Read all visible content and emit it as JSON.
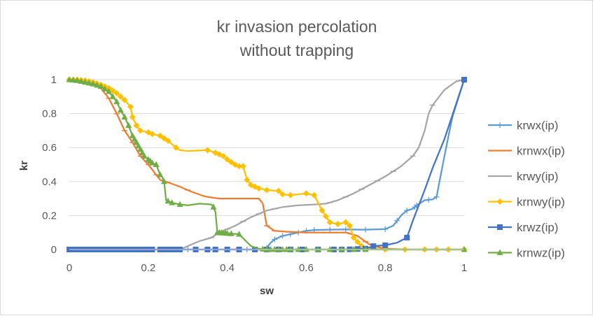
{
  "chart_data": {
    "type": "line",
    "title": [
      "kr invasion percolation",
      "without trapping"
    ],
    "xlabel": "sw",
    "ylabel": "kr",
    "xlim": [
      0,
      1
    ],
    "ylim": [
      0,
      1
    ],
    "xticks": [
      0,
      0.2,
      0.4,
      0.6,
      0.8,
      1
    ],
    "xtick_labels": [
      "0",
      "0.2",
      "0.4",
      "0.6",
      "0.8",
      "1"
    ],
    "yticks": [
      0,
      0.2,
      0.4,
      0.6,
      0.8,
      1
    ],
    "ytick_labels": [
      "0",
      "0.2",
      "0.4",
      "0.6",
      "0.8",
      "1"
    ],
    "grid": "horizontal",
    "legend_position": "right",
    "series": [
      {
        "name": "krwx(ip)",
        "color": "#5b9bd5",
        "marker": "plus",
        "points": [
          [
            0,
            0
          ],
          [
            0.1,
            0
          ],
          [
            0.2,
            0
          ],
          [
            0.3,
            0
          ],
          [
            0.4,
            0
          ],
          [
            0.45,
            0
          ],
          [
            0.48,
            0
          ],
          [
            0.5,
            0.01
          ],
          [
            0.51,
            0.04
          ],
          [
            0.52,
            0.06
          ],
          [
            0.54,
            0.08
          ],
          [
            0.56,
            0.09
          ],
          [
            0.58,
            0.1
          ],
          [
            0.6,
            0.11
          ],
          [
            0.62,
            0.115
          ],
          [
            0.66,
            0.117
          ],
          [
            0.7,
            0.118
          ],
          [
            0.75,
            0.117
          ],
          [
            0.8,
            0.12
          ],
          [
            0.82,
            0.14
          ],
          [
            0.84,
            0.2
          ],
          [
            0.855,
            0.23
          ],
          [
            0.87,
            0.24
          ],
          [
            0.88,
            0.26
          ],
          [
            0.9,
            0.29
          ],
          [
            0.92,
            0.295
          ],
          [
            0.93,
            0.31
          ],
          [
            0.95,
            0.55
          ],
          [
            0.97,
            0.78
          ],
          [
            1,
            1
          ]
        ],
        "markers_x": [
          0,
          0.05,
          0.1,
          0.15,
          0.2,
          0.25,
          0.3,
          0.4,
          0.45,
          0.5,
          0.52,
          0.54,
          0.56,
          0.58,
          0.6,
          0.62,
          0.66,
          0.7,
          0.75,
          0.8,
          0.83,
          0.855,
          0.875,
          0.88,
          0.91,
          0.93
        ]
      },
      {
        "name": "krnwx(ip)",
        "color": "#ed7d31",
        "marker": "dash",
        "points": [
          [
            0,
            1
          ],
          [
            0.02,
            0.995
          ],
          [
            0.05,
            0.98
          ],
          [
            0.08,
            0.95
          ],
          [
            0.1,
            0.89
          ],
          [
            0.12,
            0.8
          ],
          [
            0.14,
            0.7
          ],
          [
            0.16,
            0.63
          ],
          [
            0.18,
            0.55
          ],
          [
            0.2,
            0.5
          ],
          [
            0.22,
            0.44
          ],
          [
            0.23,
            0.41
          ],
          [
            0.25,
            0.395
          ],
          [
            0.28,
            0.37
          ],
          [
            0.31,
            0.34
          ],
          [
            0.34,
            0.315
          ],
          [
            0.35,
            0.31
          ],
          [
            0.38,
            0.3
          ],
          [
            0.42,
            0.3
          ],
          [
            0.48,
            0.3
          ],
          [
            0.49,
            0.27
          ],
          [
            0.5,
            0.14
          ],
          [
            0.52,
            0.11
          ],
          [
            0.55,
            0.105
          ],
          [
            0.6,
            0.1
          ],
          [
            0.65,
            0.1
          ],
          [
            0.7,
            0.1
          ],
          [
            0.73,
            0.08
          ],
          [
            0.76,
            0.03
          ],
          [
            0.78,
            0.015
          ],
          [
            0.8,
            0.005
          ],
          [
            0.85,
            0
          ],
          [
            1,
            0
          ]
        ],
        "markers_x": [
          0.02,
          0.05,
          0.08,
          0.1,
          0.12,
          0.14,
          0.16,
          0.18,
          0.2,
          0.22,
          0.25,
          0.3,
          0.35,
          0.4,
          0.45,
          0.5,
          0.52,
          0.55,
          0.6,
          0.65,
          0.7,
          0.75,
          0.78,
          0.8
        ]
      },
      {
        "name": "krwy(ip)",
        "color": "#a5a5a5",
        "marker": "dash",
        "points": [
          [
            0,
            0
          ],
          [
            0.1,
            0
          ],
          [
            0.2,
            0
          ],
          [
            0.28,
            0
          ],
          [
            0.3,
            0.02
          ],
          [
            0.33,
            0.05
          ],
          [
            0.36,
            0.07
          ],
          [
            0.38,
            0.1
          ],
          [
            0.42,
            0.14
          ],
          [
            0.46,
            0.19
          ],
          [
            0.5,
            0.23
          ],
          [
            0.54,
            0.25
          ],
          [
            0.58,
            0.26
          ],
          [
            0.62,
            0.265
          ],
          [
            0.65,
            0.27
          ],
          [
            0.68,
            0.29
          ],
          [
            0.72,
            0.33
          ],
          [
            0.76,
            0.38
          ],
          [
            0.8,
            0.43
          ],
          [
            0.84,
            0.49
          ],
          [
            0.87,
            0.55
          ],
          [
            0.885,
            0.6
          ],
          [
            0.9,
            0.7
          ],
          [
            0.91,
            0.8
          ],
          [
            0.92,
            0.85
          ],
          [
            0.95,
            0.94
          ],
          [
            0.98,
            0.99
          ],
          [
            1,
            1
          ]
        ],
        "markers_x": [
          0.36,
          0.4,
          0.44,
          0.48,
          0.52,
          0.56,
          0.6,
          0.66,
          0.7,
          0.74,
          0.78,
          0.82,
          0.87,
          0.92
        ]
      },
      {
        "name": "krnwy(ip)",
        "color": "#ffc000",
        "marker": "diamond",
        "points": [
          [
            0,
            1
          ],
          [
            0.02,
            1
          ],
          [
            0.04,
            0.995
          ],
          [
            0.06,
            0.985
          ],
          [
            0.08,
            0.97
          ],
          [
            0.1,
            0.95
          ],
          [
            0.12,
            0.92
          ],
          [
            0.14,
            0.88
          ],
          [
            0.155,
            0.84
          ],
          [
            0.16,
            0.78
          ],
          [
            0.17,
            0.73
          ],
          [
            0.18,
            0.7
          ],
          [
            0.2,
            0.69
          ],
          [
            0.21,
            0.68
          ],
          [
            0.23,
            0.67
          ],
          [
            0.25,
            0.64
          ],
          [
            0.26,
            0.62
          ],
          [
            0.27,
            0.6
          ],
          [
            0.28,
            0.585
          ],
          [
            0.3,
            0.58
          ],
          [
            0.35,
            0.585
          ],
          [
            0.37,
            0.57
          ],
          [
            0.39,
            0.55
          ],
          [
            0.4,
            0.53
          ],
          [
            0.42,
            0.5
          ],
          [
            0.43,
            0.49
          ],
          [
            0.44,
            0.49
          ],
          [
            0.45,
            0.41
          ],
          [
            0.46,
            0.38
          ],
          [
            0.48,
            0.36
          ],
          [
            0.5,
            0.35
          ],
          [
            0.53,
            0.345
          ],
          [
            0.54,
            0.325
          ],
          [
            0.56,
            0.32
          ],
          [
            0.6,
            0.33
          ],
          [
            0.62,
            0.32
          ],
          [
            0.64,
            0.23
          ],
          [
            0.66,
            0.16
          ],
          [
            0.68,
            0.15
          ],
          [
            0.7,
            0.16
          ],
          [
            0.71,
            0.14
          ],
          [
            0.72,
            0.07
          ],
          [
            0.74,
            0.02
          ],
          [
            0.76,
            0.005
          ],
          [
            0.8,
            0
          ],
          [
            1,
            0
          ]
        ],
        "markers_x": [
          0,
          0.01,
          0.02,
          0.03,
          0.04,
          0.05,
          0.06,
          0.07,
          0.08,
          0.09,
          0.1,
          0.11,
          0.12,
          0.13,
          0.14,
          0.155,
          0.16,
          0.17,
          0.18,
          0.2,
          0.21,
          0.23,
          0.24,
          0.25,
          0.27,
          0.35,
          0.37,
          0.38,
          0.39,
          0.4,
          0.41,
          0.42,
          0.43,
          0.44,
          0.45,
          0.46,
          0.47,
          0.48,
          0.5,
          0.53,
          0.54,
          0.56,
          0.6,
          0.62,
          0.64,
          0.65,
          0.66,
          0.68,
          0.7,
          0.71,
          0.72,
          0.73,
          0.74,
          0.8,
          0.85,
          0.9,
          0.93,
          0.96,
          1
        ]
      },
      {
        "name": "krwz(ip)",
        "color": "#4472c4",
        "marker": "square",
        "points": [
          [
            0,
            0
          ],
          [
            0.1,
            0
          ],
          [
            0.2,
            0
          ],
          [
            0.3,
            0
          ],
          [
            0.4,
            0
          ],
          [
            0.5,
            0
          ],
          [
            0.6,
            0
          ],
          [
            0.7,
            0
          ],
          [
            0.75,
            0.005
          ],
          [
            0.77,
            0.02
          ],
          [
            0.8,
            0.025
          ],
          [
            0.83,
            0.04
          ],
          [
            0.855,
            0.07
          ],
          [
            0.87,
            0.17
          ],
          [
            0.9,
            0.35
          ],
          [
            0.92,
            0.48
          ],
          [
            0.95,
            0.65
          ],
          [
            0.97,
            0.79
          ],
          [
            1,
            1
          ]
        ],
        "markers_x": [
          0,
          0.01,
          0.02,
          0.03,
          0.04,
          0.05,
          0.06,
          0.07,
          0.08,
          0.09,
          0.1,
          0.11,
          0.12,
          0.13,
          0.14,
          0.15,
          0.16,
          0.17,
          0.18,
          0.19,
          0.2,
          0.21,
          0.23,
          0.24,
          0.25,
          0.26,
          0.27,
          0.28,
          0.32,
          0.35,
          0.37,
          0.4,
          0.43,
          0.47,
          0.5,
          0.53,
          0.56,
          0.59,
          0.63,
          0.67,
          0.69,
          0.71,
          0.73,
          0.75,
          0.77,
          0.8,
          0.855,
          1
        ]
      },
      {
        "name": "krnwz(ip)",
        "color": "#70ad47",
        "marker": "triangle",
        "points": [
          [
            0,
            1
          ],
          [
            0.02,
            0.995
          ],
          [
            0.04,
            0.985
          ],
          [
            0.06,
            0.975
          ],
          [
            0.08,
            0.96
          ],
          [
            0.1,
            0.93
          ],
          [
            0.11,
            0.9
          ],
          [
            0.12,
            0.87
          ],
          [
            0.13,
            0.82
          ],
          [
            0.14,
            0.78
          ],
          [
            0.15,
            0.73
          ],
          [
            0.16,
            0.67
          ],
          [
            0.17,
            0.63
          ],
          [
            0.18,
            0.59
          ],
          [
            0.19,
            0.55
          ],
          [
            0.2,
            0.53
          ],
          [
            0.21,
            0.51
          ],
          [
            0.22,
            0.5
          ],
          [
            0.23,
            0.44
          ],
          [
            0.235,
            0.43
          ],
          [
            0.24,
            0.4
          ],
          [
            0.245,
            0.29
          ],
          [
            0.26,
            0.275
          ],
          [
            0.28,
            0.265
          ],
          [
            0.3,
            0.26
          ],
          [
            0.33,
            0.27
          ],
          [
            0.36,
            0.265
          ],
          [
            0.365,
            0.25
          ],
          [
            0.37,
            0.22
          ],
          [
            0.375,
            0.1
          ],
          [
            0.4,
            0.095
          ],
          [
            0.43,
            0.09
          ],
          [
            0.46,
            0.02
          ],
          [
            0.48,
            0.005
          ],
          [
            0.5,
            0
          ],
          [
            1,
            0
          ]
        ],
        "markers_x": [
          0,
          0.01,
          0.02,
          0.03,
          0.04,
          0.05,
          0.06,
          0.07,
          0.08,
          0.09,
          0.1,
          0.11,
          0.12,
          0.13,
          0.14,
          0.15,
          0.16,
          0.165,
          0.17,
          0.175,
          0.18,
          0.185,
          0.19,
          0.2,
          0.205,
          0.21,
          0.22,
          0.23,
          0.24,
          0.25,
          0.26,
          0.28,
          0.365,
          0.375,
          0.38,
          0.385,
          0.39,
          0.395,
          0.4,
          0.41,
          0.43,
          0.49,
          0.5,
          0.51,
          0.52,
          0.53,
          0.54,
          0.55,
          0.56,
          0.58,
          0.6,
          0.63,
          0.66,
          0.69,
          0.72,
          0.75,
          1
        ]
      }
    ]
  }
}
